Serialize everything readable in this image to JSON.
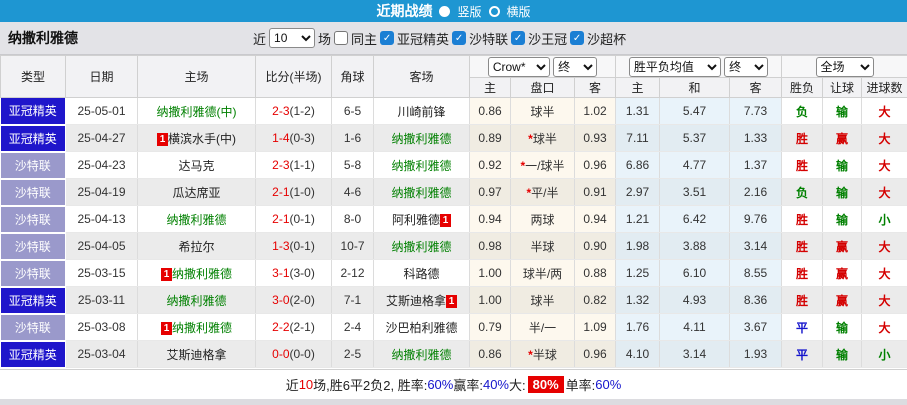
{
  "titlebar": {
    "title": "近期战绩",
    "option_vertical": "竖版",
    "option_horizontal": "横版",
    "selected": "竖版"
  },
  "filterbar": {
    "team": "纳撒利雅德",
    "near_label": "近",
    "matches_value": "10",
    "matches_label": "场",
    "same_home_label": "同主",
    "same_home_checked": false,
    "leagues": [
      "亚冠精英",
      "沙特联",
      "沙王冠",
      "沙超杯"
    ]
  },
  "table": {
    "headers": {
      "type": "类型",
      "date": "日期",
      "home": "主场",
      "score": "比分(半场)",
      "corner": "角球",
      "away": "客场",
      "odds_source_select": "Crow*",
      "odds_final_select": "终",
      "avg_select": "胜平负均值",
      "avg_final_select": "终",
      "scope_select": "全场",
      "odds_home": "主",
      "odds_line": "盘口",
      "odds_away": "客",
      "avg_home": "主",
      "avg_draw": "和",
      "avg_away": "客",
      "result": "胜负",
      "handicap": "让球",
      "goals": "进球数"
    },
    "rows": [
      {
        "league": "亚冠精英",
        "league_class": "acl",
        "date": "25-05-01",
        "home": "纳撒利雅德(中)",
        "home_green": true,
        "home_badge": null,
        "away": "川崎前锋",
        "away_green": false,
        "away_badge": null,
        "score_ft": "2-3",
        "score_ht": "(1-2)",
        "corner": "6-5",
        "odds": {
          "h": "0.86",
          "star": false,
          "line": "球半",
          "a": "1.02"
        },
        "avg": {
          "h": "1.31",
          "d": "5.47",
          "a": "7.73"
        },
        "res": {
          "wdl": "负",
          "wdl_c": "g",
          "ah": "输",
          "ah_c": "g",
          "ou": "大",
          "ou_c": "r"
        }
      },
      {
        "league": "亚冠精英",
        "league_class": "acl",
        "date": "25-04-27",
        "home": "横滨水手(中)",
        "home_green": false,
        "home_badge": "before",
        "away": "纳撒利雅德",
        "away_green": true,
        "away_badge": null,
        "score_ft": "1-4",
        "score_ht": "(0-3)",
        "corner": "1-6",
        "odds": {
          "h": "0.89",
          "star": true,
          "line": "球半",
          "a": "0.93"
        },
        "avg": {
          "h": "7.11",
          "d": "5.37",
          "a": "1.33"
        },
        "res": {
          "wdl": "胜",
          "wdl_c": "r",
          "ah": "赢",
          "ah_c": "r",
          "ou": "大",
          "ou_c": "r"
        }
      },
      {
        "league": "沙特联",
        "league_class": "spl",
        "date": "25-04-23",
        "home": "达马克",
        "home_green": false,
        "home_badge": null,
        "away": "纳撒利雅德",
        "away_green": true,
        "away_badge": null,
        "score_ft": "2-3",
        "score_ht": "(1-1)",
        "corner": "5-8",
        "odds": {
          "h": "0.92",
          "star": true,
          "line": "一/球半",
          "a": "0.96"
        },
        "avg": {
          "h": "6.86",
          "d": "4.77",
          "a": "1.37"
        },
        "res": {
          "wdl": "胜",
          "wdl_c": "r",
          "ah": "输",
          "ah_c": "g",
          "ou": "大",
          "ou_c": "r"
        }
      },
      {
        "league": "沙特联",
        "league_class": "spl",
        "date": "25-04-19",
        "home": "瓜达席亚",
        "home_green": false,
        "home_badge": null,
        "away": "纳撒利雅德",
        "away_green": true,
        "away_badge": null,
        "score_ft": "2-1",
        "score_ht": "(1-0)",
        "corner": "4-6",
        "odds": {
          "h": "0.97",
          "star": true,
          "line": "平/半",
          "a": "0.91"
        },
        "avg": {
          "h": "2.97",
          "d": "3.51",
          "a": "2.16"
        },
        "res": {
          "wdl": "负",
          "wdl_c": "g",
          "ah": "输",
          "ah_c": "g",
          "ou": "大",
          "ou_c": "r"
        }
      },
      {
        "league": "沙特联",
        "league_class": "spl",
        "date": "25-04-13",
        "home": "纳撒利雅德",
        "home_green": true,
        "home_badge": null,
        "away": "阿利雅德",
        "away_green": false,
        "away_badge": "after",
        "score_ft": "2-1",
        "score_ht": "(0-1)",
        "corner": "8-0",
        "odds": {
          "h": "0.94",
          "star": false,
          "line": "两球",
          "a": "0.94"
        },
        "avg": {
          "h": "1.21",
          "d": "6.42",
          "a": "9.76"
        },
        "res": {
          "wdl": "胜",
          "wdl_c": "r",
          "ah": "输",
          "ah_c": "g",
          "ou": "小",
          "ou_c": "g"
        }
      },
      {
        "league": "沙特联",
        "league_class": "spl",
        "date": "25-04-05",
        "home": "希拉尔",
        "home_green": false,
        "home_badge": null,
        "away": "纳撒利雅德",
        "away_green": true,
        "away_badge": null,
        "score_ft": "1-3",
        "score_ht": "(0-1)",
        "corner": "10-7",
        "odds": {
          "h": "0.98",
          "star": false,
          "line": "半球",
          "a": "0.90"
        },
        "avg": {
          "h": "1.98",
          "d": "3.88",
          "a": "3.14"
        },
        "res": {
          "wdl": "胜",
          "wdl_c": "r",
          "ah": "赢",
          "ah_c": "r",
          "ou": "大",
          "ou_c": "r"
        }
      },
      {
        "league": "沙特联",
        "league_class": "spl",
        "date": "25-03-15",
        "home": "纳撒利雅德",
        "home_green": true,
        "home_badge": "before",
        "away": "科路德",
        "away_green": false,
        "away_badge": null,
        "score_ft": "3-1",
        "score_ht": "(3-0)",
        "corner": "2-12",
        "odds": {
          "h": "1.00",
          "star": false,
          "line": "球半/两",
          "a": "0.88"
        },
        "avg": {
          "h": "1.25",
          "d": "6.10",
          "a": "8.55"
        },
        "res": {
          "wdl": "胜",
          "wdl_c": "r",
          "ah": "赢",
          "ah_c": "r",
          "ou": "大",
          "ou_c": "r"
        }
      },
      {
        "league": "亚冠精英",
        "league_class": "acl",
        "date": "25-03-11",
        "home": "纳撒利雅德",
        "home_green": true,
        "home_badge": null,
        "away": "艾斯迪格拿",
        "away_green": false,
        "away_badge": "after",
        "score_ft": "3-0",
        "score_ht": "(2-0)",
        "corner": "7-1",
        "odds": {
          "h": "1.00",
          "star": false,
          "line": "球半",
          "a": "0.82"
        },
        "avg": {
          "h": "1.32",
          "d": "4.93",
          "a": "8.36"
        },
        "res": {
          "wdl": "胜",
          "wdl_c": "r",
          "ah": "赢",
          "ah_c": "r",
          "ou": "大",
          "ou_c": "r"
        }
      },
      {
        "league": "沙特联",
        "league_class": "spl",
        "date": "25-03-08",
        "home": "纳撒利雅德",
        "home_green": true,
        "home_badge": "before",
        "away": "沙巴柏利雅德",
        "away_green": false,
        "away_badge": null,
        "score_ft": "2-2",
        "score_ht": "(2-1)",
        "corner": "2-4",
        "odds": {
          "h": "0.79",
          "star": false,
          "line": "半/一",
          "a": "1.09"
        },
        "avg": {
          "h": "1.76",
          "d": "4.11",
          "a": "3.67"
        },
        "res": {
          "wdl": "平",
          "wdl_c": "b",
          "ah": "输",
          "ah_c": "g",
          "ou": "大",
          "ou_c": "r"
        }
      },
      {
        "league": "亚冠精英",
        "league_class": "acl",
        "date": "25-03-04",
        "home": "艾斯迪格拿",
        "home_green": false,
        "home_badge": null,
        "away": "纳撒利雅德",
        "away_green": true,
        "away_badge": null,
        "score_ft": "0-0",
        "score_ht": "(0-0)",
        "corner": "2-5",
        "odds": {
          "h": "0.86",
          "star": true,
          "line": "半球",
          "a": "0.96"
        },
        "avg": {
          "h": "4.10",
          "d": "3.14",
          "a": "1.93"
        },
        "res": {
          "wdl": "平",
          "wdl_c": "b",
          "ah": "输",
          "ah_c": "g",
          "ou": "小",
          "ou_c": "g"
        }
      }
    ],
    "badge_text": "1"
  },
  "summary": {
    "segments": [
      {
        "text": "近",
        "color": "k"
      },
      {
        "text": "10",
        "color": "r"
      },
      {
        "text": "场,胜6平2负2, 胜率:",
        "color": "k"
      },
      {
        "text": "60%",
        "color": "b"
      },
      {
        "text": " 赢率:",
        "color": "k"
      },
      {
        "text": "40%",
        "color": "b"
      },
      {
        "text": " 大: ",
        "color": "k"
      },
      {
        "text": "80%",
        "color": "hl"
      },
      {
        "text": " 单率:",
        "color": "k"
      },
      {
        "text": "60%",
        "color": "b"
      }
    ]
  },
  "colors": {
    "titlebar_bg": "#1e96d2",
    "acl_type_bg": "#1f16cb",
    "spl_type_bg": "#9a99cb",
    "team_highlight": "#008000",
    "win_red": "#d40000",
    "lose_green": "#008000",
    "draw_blue": "#1414cc",
    "score_red": "#e60000",
    "odds_tint": "#fdf8ee",
    "avg_tint": "#e9f3fa",
    "summary_highlight_bg": "#e60000",
    "checkbox_blue": "#1b7fd4"
  }
}
